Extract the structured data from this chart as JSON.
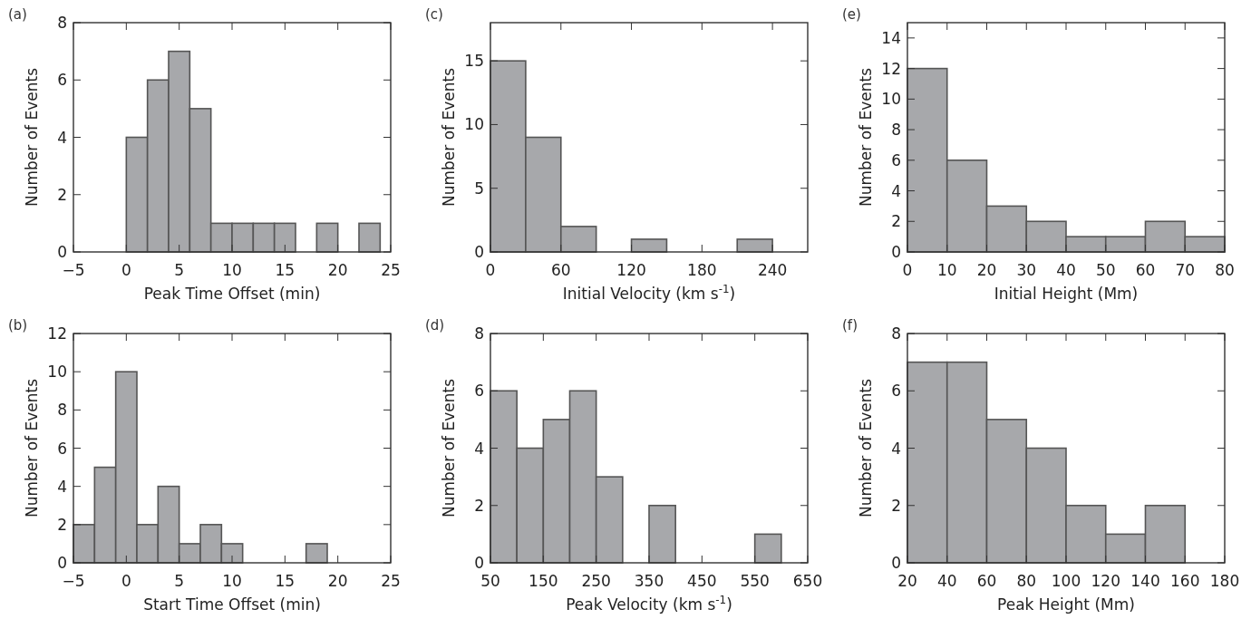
{
  "chart_data": [
    {
      "type": "histogram",
      "title": "(a)",
      "xlabel": "Peak Time Offset (min)",
      "ylabel": "Number of Events",
      "color": "#a7a8ab",
      "bins": [
        0,
        2,
        4,
        6,
        8,
        10,
        12,
        14,
        16,
        18,
        20,
        22,
        24
      ],
      "values": [
        4,
        6,
        7,
        5,
        1,
        1,
        1,
        1,
        0,
        1,
        0,
        1
      ],
      "xlim": [
        -5,
        25
      ],
      "xticks": [
        -5,
        0,
        5,
        10,
        15,
        20,
        25
      ],
      "ylim": [
        0,
        8
      ],
      "yticks": [
        0,
        2,
        4,
        6,
        8
      ]
    },
    {
      "type": "histogram",
      "title": "(c)",
      "xlabel": "Initial Velocity (km s$^{-1}$)",
      "ylabel": "Number of Events",
      "color": "#a7a8ab",
      "bins": [
        0,
        30,
        60,
        90,
        120,
        150,
        180,
        210,
        240,
        270
      ],
      "values": [
        15,
        9,
        2,
        0,
        1,
        0,
        0,
        1,
        0
      ],
      "xlim": [
        0,
        270
      ],
      "xticks": [
        0,
        60,
        120,
        180,
        240
      ],
      "ylim": [
        0,
        18
      ],
      "yticks": [
        0,
        5,
        10,
        15
      ]
    },
    {
      "type": "histogram",
      "title": "(e)",
      "xlabel": "Initial Height (Mm)",
      "ylabel": "Number of Events",
      "color": "#a7a8ab",
      "bins": [
        0,
        10,
        20,
        30,
        40,
        50,
        60,
        70,
        80
      ],
      "values": [
        12,
        6,
        3,
        2,
        1,
        1,
        2,
        1
      ],
      "xlim": [
        0,
        80
      ],
      "xticks": [
        0,
        10,
        20,
        30,
        40,
        50,
        60,
        70,
        80
      ],
      "ylim": [
        0,
        15
      ],
      "yticks": [
        0,
        2,
        4,
        6,
        8,
        10,
        12,
        14
      ]
    },
    {
      "type": "histogram",
      "title": "(b)",
      "xlabel": "Start Time Offset (min)",
      "ylabel": "Number of Events",
      "color": "#a7a8ab",
      "bins": [
        -5,
        -3,
        -1,
        1,
        3,
        5,
        7,
        9,
        11,
        13,
        15,
        17,
        19,
        21,
        23,
        25
      ],
      "values": [
        2,
        5,
        10,
        2,
        4,
        1,
        2,
        1,
        0,
        0,
        0,
        1,
        0,
        0,
        0
      ],
      "xlim": [
        -5,
        25
      ],
      "xticks": [
        -5,
        0,
        5,
        10,
        15,
        20,
        25
      ],
      "ylim": [
        0,
        12
      ],
      "yticks": [
        0,
        2,
        4,
        6,
        8,
        10,
        12
      ]
    },
    {
      "type": "histogram",
      "title": "(d)",
      "xlabel": "Peak Velocity (km s$^{-1}$)",
      "ylabel": "Number of Events",
      "color": "#a7a8ab",
      "bins": [
        50,
        100,
        150,
        200,
        250,
        300,
        350,
        400,
        450,
        500,
        550,
        600,
        650
      ],
      "values": [
        6,
        4,
        5,
        6,
        3,
        0,
        2,
        0,
        0,
        0,
        1,
        0
      ],
      "xlim": [
        50,
        650
      ],
      "xticks": [
        50,
        150,
        250,
        350,
        450,
        550,
        650
      ],
      "ylim": [
        0,
        8
      ],
      "yticks": [
        0,
        2,
        4,
        6,
        8
      ]
    },
    {
      "type": "histogram",
      "title": "(f)",
      "xlabel": "Peak Height (Mm)",
      "ylabel": "Number of Events",
      "color": "#a7a8ab",
      "bins": [
        20,
        40,
        60,
        80,
        100,
        120,
        140,
        160,
        180
      ],
      "values": [
        7,
        7,
        5,
        4,
        2,
        1,
        2,
        0
      ],
      "xlim": [
        20,
        180
      ],
      "xticks": [
        20,
        40,
        60,
        80,
        100,
        120,
        140,
        160,
        180
      ],
      "ylim": [
        0,
        8
      ],
      "yticks": [
        0,
        2,
        4,
        6,
        8
      ]
    }
  ]
}
